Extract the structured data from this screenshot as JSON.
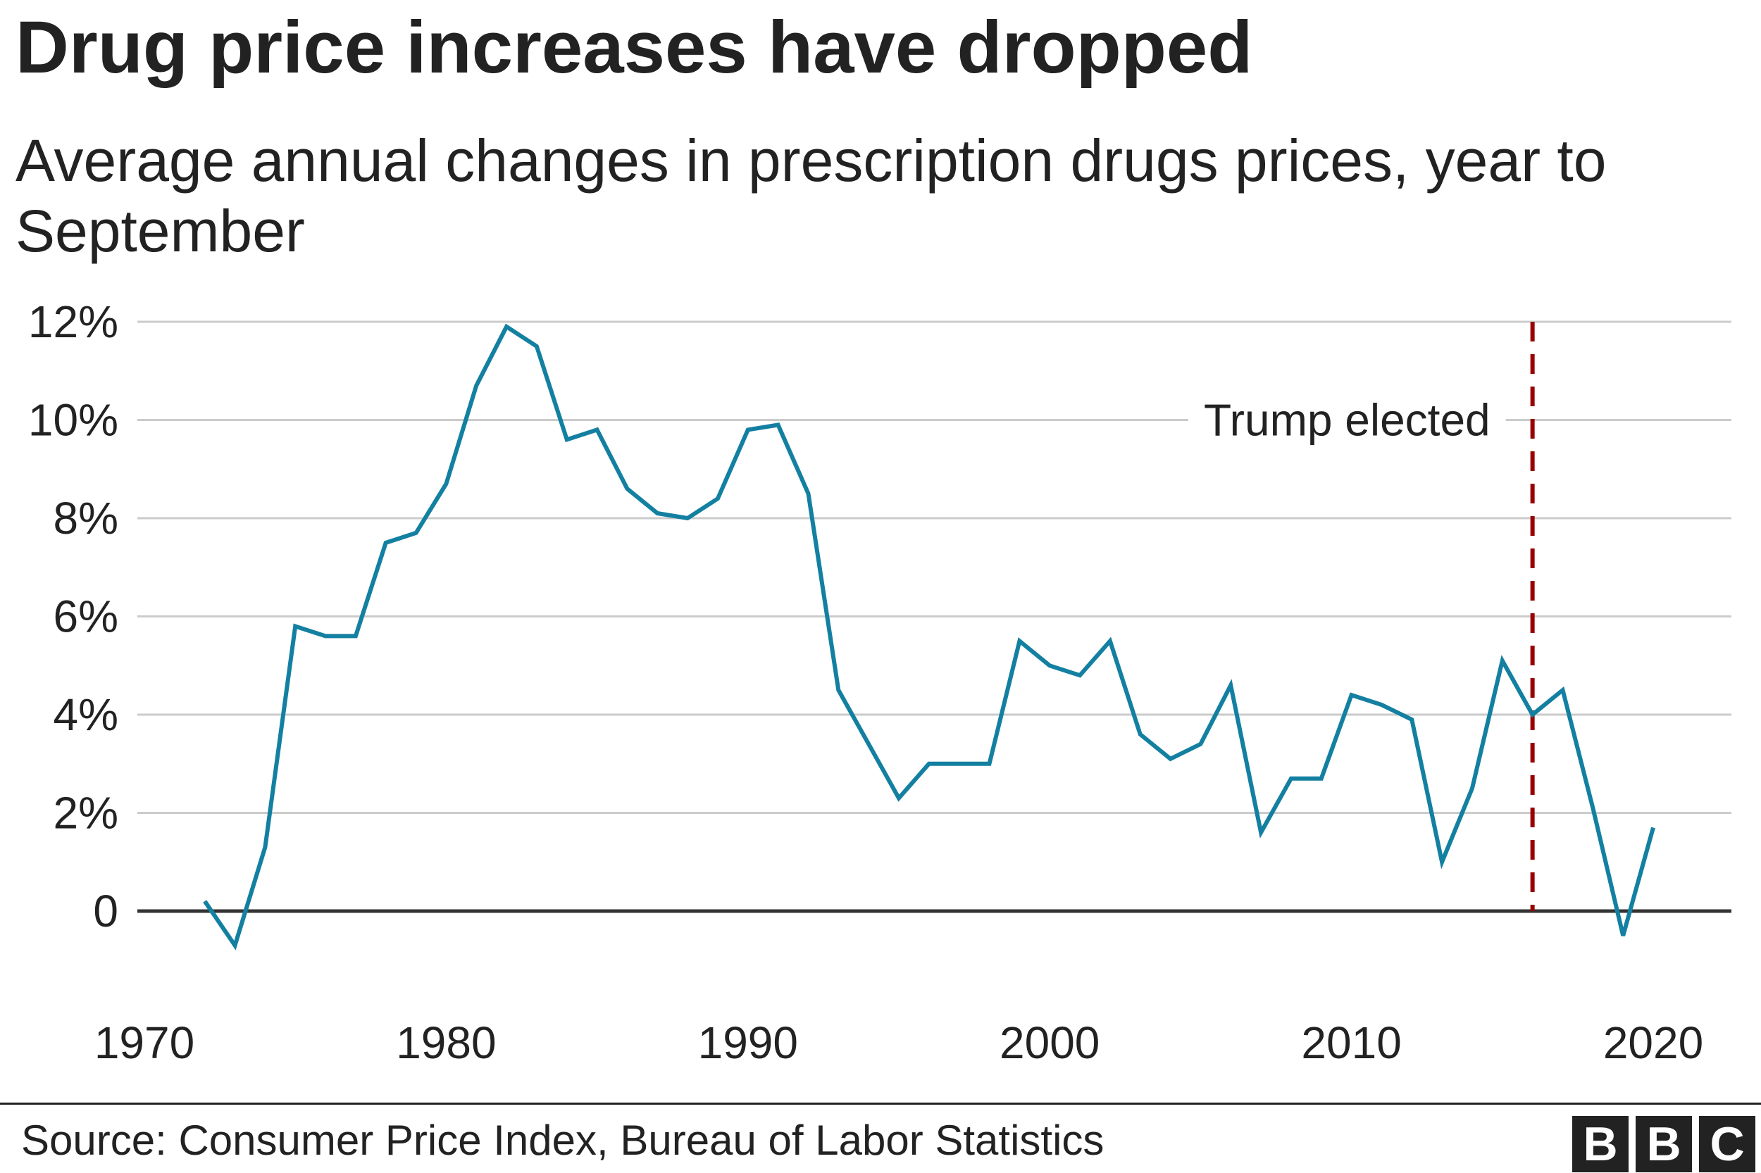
{
  "chart_data": {
    "type": "line",
    "title": "Drug price increases have dropped",
    "subtitle": "Average annual changes in prescription drugs prices, year to September",
    "xlabel": "",
    "ylabel": "",
    "xlim": [
      1970,
      2020
    ],
    "ylim": [
      -1.5,
      12
    ],
    "grid": true,
    "y_ticks": [
      0,
      2,
      4,
      6,
      8,
      10,
      12
    ],
    "y_tick_labels": [
      "0",
      "2%",
      "4%",
      "6%",
      "8%",
      "10%",
      "12%"
    ],
    "x_ticks": [
      1970,
      1980,
      1990,
      2000,
      2010,
      2020
    ],
    "x_tick_labels": [
      "1970",
      "1980",
      "1990",
      "2000",
      "2010",
      "2020"
    ],
    "series": [
      {
        "name": "Average annual change in prescription drug prices",
        "color": "#1380A1",
        "x": [
          1972,
          1973,
          1974,
          1975,
          1976,
          1977,
          1978,
          1979,
          1980,
          1981,
          1982,
          1983,
          1984,
          1985,
          1986,
          1987,
          1988,
          1989,
          1990,
          1991,
          1992,
          1993,
          1994,
          1995,
          1996,
          1997,
          1998,
          1999,
          2000,
          2001,
          2002,
          2003,
          2004,
          2005,
          2006,
          2007,
          2008,
          2009,
          2010,
          2011,
          2012,
          2013,
          2014,
          2015,
          2016,
          2017,
          2018,
          2019,
          2020
        ],
        "values": [
          0.2,
          -0.7,
          1.3,
          5.8,
          5.6,
          5.6,
          7.5,
          7.7,
          8.7,
          10.7,
          11.9,
          11.5,
          9.6,
          9.8,
          8.6,
          8.1,
          8.0,
          8.4,
          9.8,
          9.9,
          8.5,
          4.5,
          3.4,
          2.3,
          3.0,
          3.0,
          3.0,
          5.5,
          5.0,
          4.8,
          5.5,
          3.6,
          3.1,
          3.4,
          4.6,
          1.6,
          2.7,
          2.7,
          4.4,
          4.2,
          3.9,
          1.0,
          2.5,
          5.1,
          4.0,
          4.5,
          2.1,
          -0.5,
          1.7
        ]
      }
    ],
    "annotation": {
      "label": "Trump elected",
      "x": 2016,
      "color": "#990000"
    }
  },
  "footer": {
    "source": "Source: Consumer Price Index, Bureau of Labor Statistics",
    "logo_letters": [
      "B",
      "B",
      "C"
    ]
  },
  "colors": {
    "text": "#222222",
    "grid": "#cbcbcb",
    "zero_line": "#333333",
    "line": "#1380A1",
    "annotation": "#990000"
  }
}
